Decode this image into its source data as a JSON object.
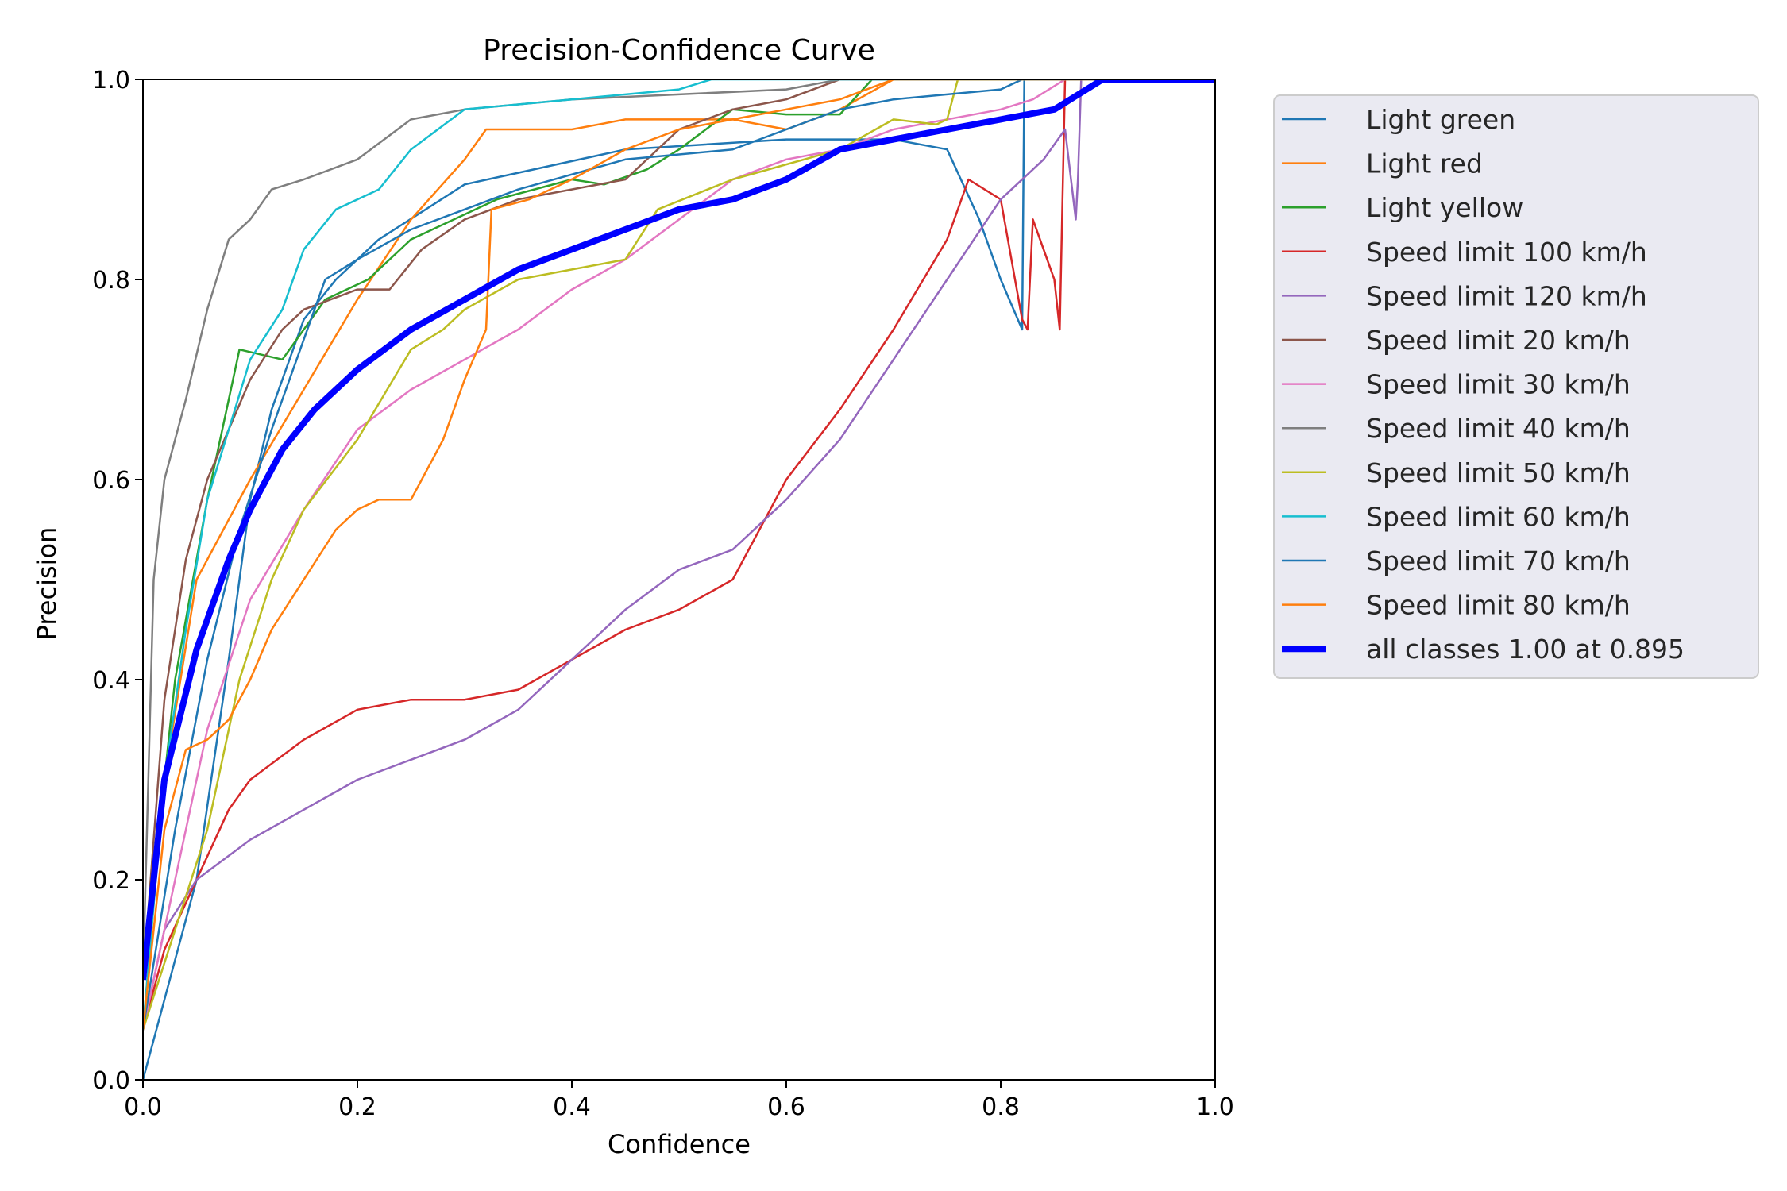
{
  "chart_data": {
    "type": "line",
    "title": "Precision-Confidence Curve",
    "xlabel": "Confidence",
    "ylabel": "Precision",
    "xlim": [
      0,
      1
    ],
    "ylim": [
      0,
      1
    ],
    "xticks": [
      "0.0",
      "0.2",
      "0.4",
      "0.6",
      "0.8",
      "1.0"
    ],
    "yticks": [
      "0.0",
      "0.2",
      "0.4",
      "0.6",
      "0.8",
      "1.0"
    ],
    "grid": false,
    "legend_position": "outside-right",
    "series": [
      {
        "name": "Light green",
        "color": "#1f77b4",
        "x": [
          0.0,
          0.02,
          0.05,
          0.08,
          0.1,
          0.12,
          0.15,
          0.18,
          0.22,
          0.3,
          0.45,
          0.6,
          0.7,
          0.75,
          0.78,
          0.8,
          0.82,
          0.822,
          0.83,
          1.0
        ],
        "y": [
          0.0,
          0.08,
          0.2,
          0.42,
          0.58,
          0.67,
          0.76,
          0.8,
          0.84,
          0.895,
          0.93,
          0.94,
          0.94,
          0.93,
          0.86,
          0.8,
          0.75,
          1.0,
          1.0,
          1.0
        ]
      },
      {
        "name": "Light red",
        "color": "#ff7f0e",
        "x": [
          0.0,
          0.02,
          0.05,
          0.1,
          0.15,
          0.2,
          0.25,
          0.3,
          0.32,
          0.4,
          0.45,
          0.55,
          0.6,
          0.65,
          0.7,
          1.0
        ],
        "y": [
          0.05,
          0.3,
          0.5,
          0.6,
          0.69,
          0.78,
          0.86,
          0.92,
          0.95,
          0.95,
          0.96,
          0.96,
          0.95,
          0.97,
          1.0,
          1.0
        ]
      },
      {
        "name": "Light yellow",
        "color": "#2ca02c",
        "x": [
          0.0,
          0.03,
          0.06,
          0.09,
          0.13,
          0.17,
          0.21,
          0.25,
          0.29,
          0.33,
          0.4,
          0.43,
          0.47,
          0.5,
          0.55,
          0.6,
          0.65,
          0.68,
          1.0
        ],
        "y": [
          0.1,
          0.4,
          0.58,
          0.73,
          0.72,
          0.78,
          0.8,
          0.84,
          0.86,
          0.88,
          0.9,
          0.895,
          0.91,
          0.93,
          0.97,
          0.965,
          0.965,
          1.0,
          1.0
        ]
      },
      {
        "name": "Speed limit 100 km/h",
        "color": "#d62728",
        "x": [
          0.0,
          0.02,
          0.05,
          0.08,
          0.1,
          0.15,
          0.2,
          0.25,
          0.3,
          0.35,
          0.4,
          0.45,
          0.5,
          0.55,
          0.6,
          0.65,
          0.7,
          0.75,
          0.77,
          0.8,
          0.82,
          0.825,
          0.83,
          0.84,
          0.85,
          0.855,
          0.86,
          1.0
        ],
        "y": [
          0.05,
          0.13,
          0.2,
          0.27,
          0.3,
          0.34,
          0.37,
          0.38,
          0.38,
          0.39,
          0.42,
          0.45,
          0.47,
          0.5,
          0.6,
          0.67,
          0.75,
          0.84,
          0.9,
          0.88,
          0.76,
          0.75,
          0.86,
          0.83,
          0.8,
          0.75,
          1.0,
          1.0
        ]
      },
      {
        "name": "Speed limit 120 km/h",
        "color": "#9467bd",
        "x": [
          0.0,
          0.02,
          0.05,
          0.1,
          0.15,
          0.2,
          0.25,
          0.3,
          0.35,
          0.4,
          0.45,
          0.5,
          0.55,
          0.6,
          0.65,
          0.7,
          0.75,
          0.8,
          0.84,
          0.86,
          0.87,
          0.872,
          0.875,
          1.0
        ],
        "y": [
          0.05,
          0.15,
          0.2,
          0.24,
          0.27,
          0.3,
          0.32,
          0.34,
          0.37,
          0.42,
          0.47,
          0.51,
          0.53,
          0.58,
          0.64,
          0.72,
          0.8,
          0.88,
          0.92,
          0.95,
          0.86,
          0.9,
          1.0,
          1.0
        ]
      },
      {
        "name": "Speed limit 20 km/h",
        "color": "#8c564b",
        "x": [
          0.0,
          0.02,
          0.04,
          0.06,
          0.08,
          0.1,
          0.13,
          0.15,
          0.2,
          0.23,
          0.26,
          0.3,
          0.35,
          0.45,
          0.5,
          0.55,
          0.6,
          0.65,
          1.0
        ],
        "y": [
          0.1,
          0.38,
          0.52,
          0.6,
          0.65,
          0.7,
          0.75,
          0.77,
          0.79,
          0.79,
          0.83,
          0.86,
          0.88,
          0.9,
          0.95,
          0.97,
          0.98,
          1.0,
          1.0
        ]
      },
      {
        "name": "Speed limit 30 km/h",
        "color": "#e377c2",
        "x": [
          0.0,
          0.03,
          0.06,
          0.1,
          0.15,
          0.2,
          0.25,
          0.3,
          0.35,
          0.4,
          0.45,
          0.5,
          0.55,
          0.6,
          0.65,
          0.7,
          0.8,
          0.83,
          0.86,
          1.0
        ],
        "y": [
          0.05,
          0.2,
          0.35,
          0.48,
          0.57,
          0.65,
          0.69,
          0.72,
          0.75,
          0.79,
          0.82,
          0.86,
          0.9,
          0.92,
          0.93,
          0.95,
          0.97,
          0.98,
          1.0,
          1.0
        ]
      },
      {
        "name": "Speed limit 40 km/h",
        "color": "#7f7f7f",
        "x": [
          0.0,
          0.01,
          0.02,
          0.04,
          0.06,
          0.08,
          0.1,
          0.12,
          0.15,
          0.2,
          0.25,
          0.3,
          0.4,
          0.5,
          0.6,
          0.65,
          1.0
        ],
        "y": [
          0.1,
          0.5,
          0.6,
          0.68,
          0.77,
          0.84,
          0.86,
          0.89,
          0.9,
          0.92,
          0.96,
          0.97,
          0.98,
          0.985,
          0.99,
          1.0,
          1.0
        ]
      },
      {
        "name": "Speed limit 50 km/h",
        "color": "#bcbd22",
        "x": [
          0.0,
          0.03,
          0.06,
          0.09,
          0.12,
          0.15,
          0.2,
          0.25,
          0.28,
          0.3,
          0.35,
          0.45,
          0.48,
          0.55,
          0.65,
          0.7,
          0.74,
          0.75,
          0.76,
          1.0
        ],
        "y": [
          0.05,
          0.15,
          0.25,
          0.4,
          0.5,
          0.57,
          0.64,
          0.73,
          0.75,
          0.77,
          0.8,
          0.82,
          0.87,
          0.9,
          0.93,
          0.96,
          0.955,
          0.96,
          1.0,
          1.0
        ]
      },
      {
        "name": "Speed limit 60 km/h",
        "color": "#17becf",
        "x": [
          0.0,
          0.02,
          0.04,
          0.06,
          0.08,
          0.1,
          0.13,
          0.15,
          0.18,
          0.22,
          0.25,
          0.3,
          0.4,
          0.5,
          0.53,
          1.0
        ],
        "y": [
          0.05,
          0.3,
          0.45,
          0.58,
          0.65,
          0.72,
          0.77,
          0.83,
          0.87,
          0.89,
          0.93,
          0.97,
          0.98,
          0.99,
          1.0,
          1.0
        ]
      },
      {
        "name": "Speed limit 70 km/h",
        "color": "#1f77b4",
        "x": [
          0.0,
          0.03,
          0.06,
          0.09,
          0.12,
          0.15,
          0.17,
          0.2,
          0.25,
          0.3,
          0.35,
          0.45,
          0.55,
          0.6,
          0.65,
          0.7,
          0.8,
          0.82,
          1.0
        ],
        "y": [
          0.05,
          0.25,
          0.42,
          0.55,
          0.65,
          0.74,
          0.8,
          0.82,
          0.85,
          0.87,
          0.89,
          0.92,
          0.93,
          0.95,
          0.97,
          0.98,
          0.99,
          1.0,
          1.0
        ]
      },
      {
        "name": "Speed limit 80 km/h",
        "color": "#ff7f0e",
        "x": [
          0.0,
          0.02,
          0.04,
          0.06,
          0.08,
          0.1,
          0.12,
          0.15,
          0.18,
          0.2,
          0.22,
          0.25,
          0.26,
          0.28,
          0.3,
          0.32,
          0.325,
          0.36,
          0.4,
          0.45,
          0.5,
          0.55,
          0.6,
          0.65,
          0.7,
          1.0
        ],
        "y": [
          0.05,
          0.25,
          0.33,
          0.34,
          0.36,
          0.4,
          0.45,
          0.5,
          0.55,
          0.57,
          0.58,
          0.58,
          0.6,
          0.64,
          0.7,
          0.75,
          0.87,
          0.88,
          0.9,
          0.93,
          0.95,
          0.96,
          0.97,
          0.98,
          1.0,
          1.0
        ]
      },
      {
        "name": "all classes 1.00 at 0.895",
        "color": "#0000ff",
        "x": [
          0.0,
          0.02,
          0.05,
          0.08,
          0.1,
          0.13,
          0.16,
          0.2,
          0.25,
          0.3,
          0.35,
          0.4,
          0.45,
          0.5,
          0.55,
          0.6,
          0.65,
          0.7,
          0.75,
          0.8,
          0.85,
          0.895,
          1.0
        ],
        "y": [
          0.1,
          0.3,
          0.43,
          0.52,
          0.57,
          0.63,
          0.67,
          0.71,
          0.75,
          0.78,
          0.81,
          0.83,
          0.85,
          0.87,
          0.88,
          0.9,
          0.93,
          0.94,
          0.95,
          0.96,
          0.97,
          1.0,
          1.0
        ],
        "bold": true
      }
    ]
  }
}
